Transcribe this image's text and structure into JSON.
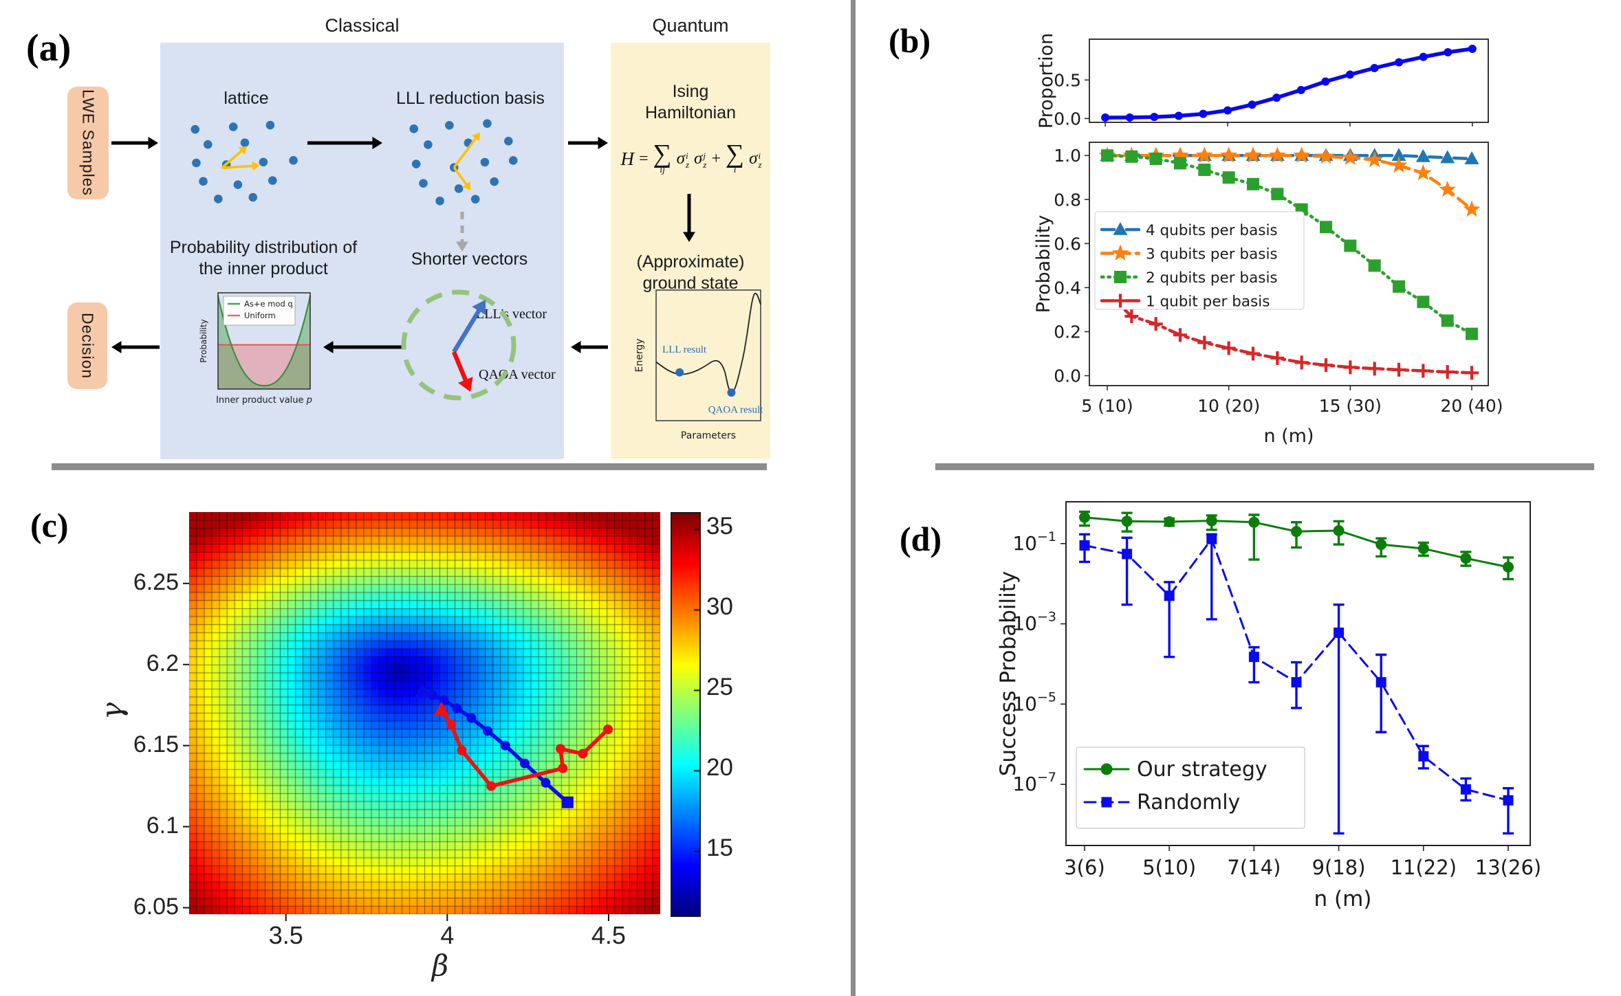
{
  "figure": {
    "background": "#ffffff",
    "divider_color": "#8c8c8c"
  },
  "panel_a": {
    "tag": "(a)",
    "classical_label": "Classical",
    "quantum_label": "Quantum",
    "lwe_box": "LWE Samples",
    "decision_box": "Decision",
    "lattice_label": "lattice",
    "lll_label": "LLL reduction basis",
    "prob_dist_line1": "Probability distribution of",
    "prob_dist_line2": "the inner product",
    "shorter_label": "Shorter vectors",
    "ising_line1": "Ising",
    "ising_line2": "Hamiltonian",
    "approx_line1": "(Approximate)",
    "approx_line2": "ground state",
    "lll_vector_label": "LLL's vector",
    "qaoa_vector_label": "QAOA vector",
    "formula": {
      "H": "H",
      "eq": "=",
      "sum": "∑",
      "sub_ij": "ij",
      "sigma": "σ",
      "sup_i": "i",
      "sup_j": "j",
      "sub_z": "z",
      "plus": "+",
      "sub_i": "i"
    },
    "colors": {
      "classical_box": "#d9e2f3",
      "quantum_box": "#fdf2d0",
      "io_box": "#f6c9a9",
      "lattice_dot": "#2e74b5",
      "basis_arrow": "#ffc000",
      "dashed_circle": "#93c47d",
      "lll_arrow": "#4472c4",
      "qaoa_arrow": "#f01010",
      "flow_arrow": "#000000",
      "dashed_arrow": "#a8a8a8",
      "result_text": "#2b6cb8"
    },
    "clusters": {
      "lattice": {
        "dots": [
          [
            0.07,
            0.1
          ],
          [
            0.4,
            0.07
          ],
          [
            0.72,
            0.05
          ],
          [
            0.18,
            0.28
          ],
          [
            0.5,
            0.26
          ],
          [
            0.08,
            0.5
          ],
          [
            0.34,
            0.52
          ],
          [
            0.66,
            0.49
          ],
          [
            0.92,
            0.47
          ],
          [
            0.14,
            0.72
          ],
          [
            0.44,
            0.76
          ],
          [
            0.74,
            0.71
          ],
          [
            0.27,
            0.93
          ],
          [
            0.57,
            0.91
          ]
        ],
        "arrows": [
          {
            "from": [
              0.3,
              0.56
            ],
            "to": [
              0.52,
              0.3
            ]
          },
          {
            "from": [
              0.3,
              0.56
            ],
            "to": [
              0.63,
              0.53
            ]
          }
        ]
      },
      "basis": {
        "dots": [
          [
            0.08,
            0.12
          ],
          [
            0.38,
            0.08
          ],
          [
            0.7,
            0.06
          ],
          [
            0.2,
            0.3
          ],
          [
            0.54,
            0.28
          ],
          [
            0.88,
            0.26
          ],
          [
            0.1,
            0.52
          ],
          [
            0.42,
            0.56
          ],
          [
            0.68,
            0.5
          ],
          [
            0.92,
            0.48
          ],
          [
            0.16,
            0.74
          ],
          [
            0.46,
            0.8
          ],
          [
            0.76,
            0.72
          ],
          [
            0.3,
            0.94
          ],
          [
            0.6,
            0.92
          ]
        ],
        "arrows": [
          {
            "from": [
              0.42,
              0.56
            ],
            "to": [
              0.64,
              0.16
            ]
          },
          {
            "from": [
              0.42,
              0.56
            ],
            "to": [
              0.56,
              0.82
            ]
          }
        ]
      }
    }
  },
  "panel_b": {
    "tag": "(b)"
  },
  "panel_c": {
    "tag": "(c)"
  },
  "panel_d": {
    "tag": "(d)"
  },
  "chart_data": [
    {
      "id": "b_top",
      "type": "line",
      "x": [
        5,
        6,
        7,
        8,
        9,
        10,
        11,
        12,
        13,
        14,
        15,
        16,
        17,
        18,
        19,
        20
      ],
      "series": [
        {
          "name": "proportion",
          "color": "#0808f0",
          "marker": "circle",
          "linestyle": "solid",
          "values": [
            0.012,
            0.013,
            0.02,
            0.035,
            0.06,
            0.105,
            0.18,
            0.27,
            0.37,
            0.48,
            0.57,
            0.655,
            0.73,
            0.8,
            0.86,
            0.905
          ]
        }
      ],
      "ylabel": "Proportion",
      "yticks": [
        0.0,
        0.5
      ],
      "ylim": [
        -0.05,
        1.03
      ],
      "xlim": [
        4.35,
        20.65
      ],
      "grid": false
    },
    {
      "id": "b_main",
      "type": "line",
      "x": [
        5,
        6,
        7,
        8,
        9,
        10,
        11,
        12,
        13,
        14,
        15,
        16,
        17,
        18,
        19,
        20
      ],
      "series": [
        {
          "name": "4 qubits per basis",
          "color": "#1f77b4",
          "marker": "triangle",
          "linestyle": "dashdot",
          "values": [
            1,
            1,
            1,
            1,
            1,
            1,
            1,
            1,
            1,
            1,
            1,
            1,
            1,
            0.995,
            0.99,
            0.985
          ]
        },
        {
          "name": "3 qubits per basis",
          "color": "#ff7f0e",
          "marker": "star",
          "linestyle": "dashed",
          "values": [
            1,
            1,
            1,
            1,
            1,
            1,
            1,
            1,
            1,
            0.995,
            0.99,
            0.98,
            0.955,
            0.92,
            0.845,
            0.755
          ]
        },
        {
          "name": "2 qubits per basis",
          "color": "#2ca02c",
          "marker": "square",
          "linestyle": "dotted",
          "values": [
            1,
            0.995,
            0.985,
            0.965,
            0.935,
            0.9,
            0.87,
            0.825,
            0.755,
            0.675,
            0.59,
            0.5,
            0.405,
            0.335,
            0.25,
            0.19
          ]
        },
        {
          "name": "1 qubit per basis",
          "color": "#d62728",
          "marker": "plus",
          "linestyle": "dashdot",
          "values": [
            0.375,
            0.27,
            0.235,
            0.185,
            0.15,
            0.125,
            0.1,
            0.08,
            0.06,
            0.048,
            0.038,
            0.032,
            0.027,
            0.022,
            0.017,
            0.013
          ]
        }
      ],
      "ylabel": "Probability",
      "yticks": [
        0.0,
        0.2,
        0.4,
        0.6,
        0.8,
        1.0
      ],
      "ylim": [
        -0.045,
        1.06
      ],
      "xticks": [
        5,
        10,
        15,
        20
      ],
      "xticklabels": [
        "5 (10)",
        "10 (20)",
        "15 (30)",
        "20 (40)"
      ],
      "xlabel": "n (m)",
      "xlim": [
        4.35,
        20.65
      ],
      "legend_pos": "center-left",
      "grid": false
    },
    {
      "id": "c_heatmap",
      "type": "heatmap",
      "xlabel": "β",
      "ylabel": "γ",
      "xlim": [
        3.2,
        4.66
      ],
      "ylim": [
        6.046,
        6.294
      ],
      "xticks": [
        3.5,
        4,
        4.5
      ],
      "xticklabels": [
        "3.5",
        "4",
        "4.5"
      ],
      "yticks": [
        6.25,
        6.2,
        6.15,
        6.1,
        6.05
      ],
      "yticklabels": [
        "6.25",
        "6.2",
        "6.15",
        "6.1",
        "6.05"
      ],
      "colorbar": {
        "ticks": [
          35,
          30,
          25,
          20,
          15
        ],
        "vmin": 11,
        "vmax": 36
      },
      "surface": {
        "center": [
          3.85,
          6.197
        ],
        "base_value": 12.3,
        "range": 21.8,
        "rx_left": 0.91,
        "rx_right": 1.13,
        "ry_up": 0.105,
        "ry_down": 0.191,
        "cap": 1.04
      },
      "grid": {
        "nx": 62,
        "ny": 50
      },
      "trajectories": [
        {
          "name": "lll-init-path",
          "color": "#0b0bea",
          "start_marker": "triangle",
          "end_marker": "square",
          "points": [
            [
              3.923,
              6.183
            ],
            [
              3.955,
              6.181
            ],
            [
              3.99,
              6.178
            ],
            [
              4.03,
              6.173
            ],
            [
              4.075,
              6.167
            ],
            [
              4.125,
              6.159
            ],
            [
              4.18,
              6.15
            ],
            [
              4.24,
              6.139
            ],
            [
              4.305,
              6.127
            ],
            [
              4.373,
              6.115
            ]
          ]
        },
        {
          "name": "random-init-path",
          "color": "#ef1010",
          "start_marker": "triangle",
          "end_marker": "circle",
          "points": [
            [
              3.982,
              6.172
            ],
            [
              4.012,
              6.163
            ],
            [
              4.045,
              6.147
            ],
            [
              4.136,
              6.125
            ],
            [
              4.358,
              6.136
            ],
            [
              4.351,
              6.148
            ],
            [
              4.42,
              6.145
            ],
            [
              4.498,
              6.16
            ]
          ]
        }
      ]
    },
    {
      "id": "d",
      "type": "line-log",
      "x": [
        3,
        4,
        5,
        6,
        7,
        8,
        9,
        10,
        11,
        12,
        13
      ],
      "series": [
        {
          "name": "Our strategy",
          "color": "#0a7d0a",
          "marker": "circle",
          "linestyle": "solid",
          "values": [
            0.45,
            0.36,
            0.35,
            0.37,
            0.34,
            0.2,
            0.21,
            0.095,
            0.075,
            0.043,
            0.026
          ],
          "err_lo": [
            0.28,
            0.2,
            0.28,
            0.22,
            0.04,
            0.08,
            0.095,
            0.048,
            0.05,
            0.028,
            0.013
          ],
          "err_hi": [
            0.62,
            0.58,
            0.42,
            0.5,
            0.52,
            0.34,
            0.36,
            0.135,
            0.105,
            0.062,
            0.045
          ]
        },
        {
          "name": "Randomly",
          "color": "#0a0aee",
          "marker": "square",
          "linestyle": "dashed",
          "values": [
            0.09,
            0.055,
            0.005,
            0.13,
            0.00015,
            3.5e-05,
            0.0006,
            3.5e-05,
            5e-07,
            7.5e-08,
            4e-08
          ],
          "err_lo": [
            0.035,
            0.003,
            0.00015,
            0.0013,
            3.5e-05,
            8e-06,
            6e-09,
            2e-06,
            2.5e-07,
            4e-08,
            6e-09
          ],
          "err_hi": [
            0.17,
            0.14,
            0.011,
            0.17,
            0.00026,
            0.00011,
            0.003,
            0.00017,
            9e-07,
            1.4e-07,
            8e-08
          ]
        }
      ],
      "ylabel": "Success Probability",
      "ytick_exponents": [
        -1,
        -3,
        -5,
        -7
      ],
      "ylim": [
        3e-09,
        1.1
      ],
      "xticks": [
        3,
        5,
        7,
        9,
        11,
        13
      ],
      "xticklabels": [
        "3(6)",
        "5(10)",
        "7(14)",
        "9(18)",
        "11(22)",
        "13(26)"
      ],
      "xlabel": "n (m)"
    },
    {
      "id": "a_inner",
      "type": "distribution",
      "legend": [
        {
          "label": "As+e mod q",
          "color": "#4ca64c"
        },
        {
          "label": "Uniform",
          "color": "#e86a6a"
        }
      ],
      "xlabel_main": "Inner product value ",
      "xlabel_var": "p",
      "ylabel": "Probability",
      "uniform_level": 0.46,
      "peak": 0.965
    },
    {
      "id": "a_energy",
      "type": "curve",
      "xlabel": "Parameters",
      "ylabel": "Energy",
      "points": [
        {
          "label": "LLL result",
          "x": 0.225,
          "y": 0.37
        },
        {
          "label": "QAOA result",
          "x": 0.72,
          "y": 0.215
        }
      ]
    }
  ]
}
